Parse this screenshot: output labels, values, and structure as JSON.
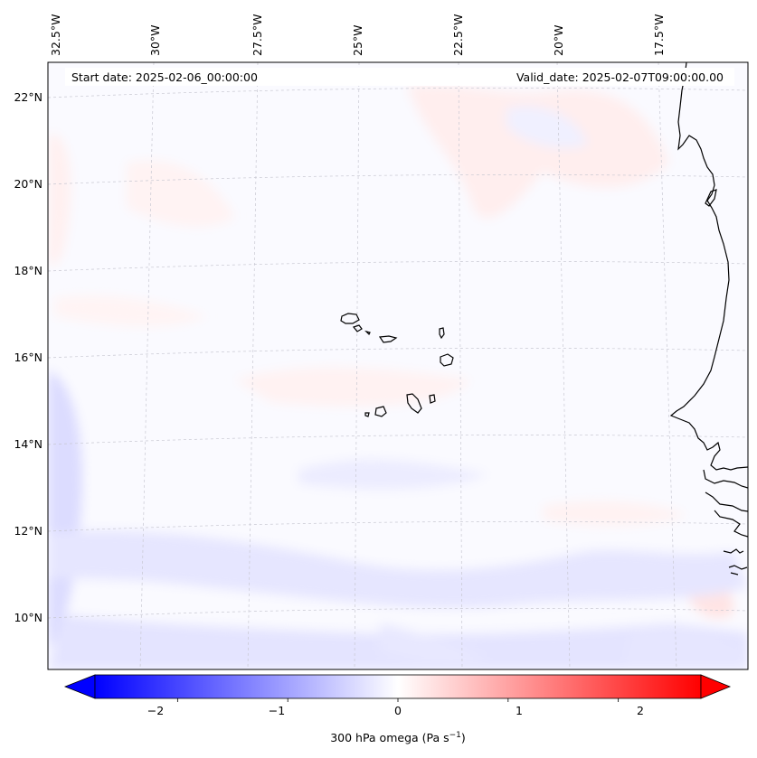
{
  "header": {
    "start_date": "Start date: 2025-02-06_00:00:00",
    "valid_date": "Valid_date: 2025-02-07T09:00:00.00"
  },
  "longitude_labels": [
    "32.5°W",
    "30°W",
    "27.5°W",
    "25°W",
    "22.5°W",
    "20°W",
    "17.5°W"
  ],
  "latitude_labels": [
    "22°N",
    "20°N",
    "18°N",
    "16°N",
    "14°N",
    "12°N",
    "10°N"
  ],
  "colorbar": {
    "title": "300 hPa omega (Pa s",
    "title_sup": "−1",
    "title_close": ")",
    "tick_labels": [
      "−2",
      "−1",
      "0",
      "1",
      "2"
    ],
    "range": [
      -2.75,
      2.75
    ],
    "low_color": "#0000ff",
    "mid_color": "#ffffff",
    "high_color": "#ff0000"
  },
  "colors": {
    "background_field": "#fafaff",
    "coastline": "#000000",
    "gridline": "#c8c8d2"
  },
  "places": [
    "Cape Verde islands",
    "West African coast"
  ]
}
